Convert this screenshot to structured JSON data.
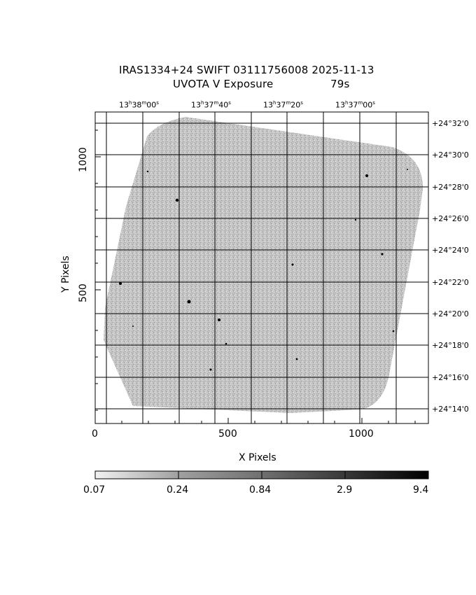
{
  "header": {
    "title_line1": "IRAS1334+24 SWIFT 03111756008 2025-11-13",
    "title_line2_left": "UVOTA V Exposure",
    "title_line2_right": "79s"
  },
  "axes": {
    "xlabel": "X Pixels",
    "ylabel": "Y Pixels",
    "x_ticks": [
      "0",
      "500",
      "1000"
    ],
    "y_ticks": [
      "500",
      "1000"
    ]
  },
  "wcs": {
    "ra_labels": [
      {
        "h": "13",
        "m": "38",
        "s": "00"
      },
      {
        "h": "13",
        "m": "37",
        "s": "40"
      },
      {
        "h": "13",
        "m": "37",
        "s": "20"
      },
      {
        "h": "13",
        "m": "37",
        "s": "00"
      }
    ],
    "dec_labels": [
      "+24°32'0",
      "+24°30'0",
      "+24°28'0",
      "+24°26'0",
      "+24°24'0",
      "+24°22'0",
      "+24°20'0",
      "+24°18'0",
      "+24°16'0",
      "+24°14'0"
    ]
  },
  "colorbar": {
    "labels": [
      "0.07",
      "0.24",
      "0.84",
      "2.9",
      "9.4"
    ],
    "scale": "log",
    "low_color": "#f2f2f2",
    "high_color": "#000000"
  }
}
